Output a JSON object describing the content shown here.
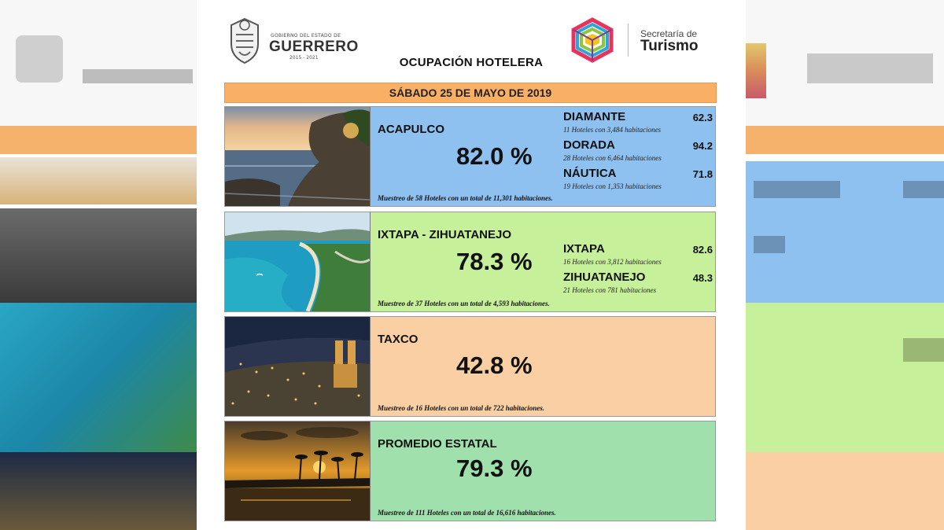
{
  "header": {
    "government": {
      "small_text": "GOBIERNO DEL ESTADO DE",
      "name": "GUERRERO",
      "years": "2015 - 2021"
    },
    "secretariat": {
      "small_text": "Secretaría de",
      "name": "Turismo"
    },
    "title": "OCUPACIÓN HOTELERA",
    "date": "SÁBADO 25 DE MAYO DE 2019"
  },
  "destinations": [
    {
      "name": "ACAPULCO",
      "percent": "82.0 %",
      "sample": "Muestreo de 58 Hoteles con un total de 11,301 habitaciones.",
      "color": "#8ec0f0",
      "zones": [
        {
          "name": "DIAMANTE",
          "value": "62.3",
          "detail": "11 Hoteles con 3,484 habitaciones"
        },
        {
          "name": "DORADA",
          "value": "94.2",
          "detail": "28 Hoteles con 6,464 habitaciones"
        },
        {
          "name": "NÁUTICA",
          "value": "71.8",
          "detail": "19 Hoteles con 1,353 habitaciones"
        }
      ]
    },
    {
      "name": "IXTAPA - ZIHUATANEJO",
      "percent": "78.3 %",
      "sample": "Muestreo de 37 Hoteles con un total de 4,593 habitaciones.",
      "color": "#c7f09a",
      "zones": [
        {
          "name": "IXTAPA",
          "value": "82.6",
          "detail": "16 Hoteles con 3,812 habitaciones"
        },
        {
          "name": "ZIHUATANEJO",
          "value": "48.3",
          "detail": "21 Hoteles con 781 habitaciones"
        }
      ]
    },
    {
      "name": "TAXCO",
      "percent": "42.8 %",
      "sample": "Muestreo de 16 Hoteles con un total de 722 habitaciones.",
      "color": "#f9cfa3",
      "zones": []
    },
    {
      "name": "PROMEDIO ESTATAL",
      "percent": "79.3 %",
      "sample": "Muestreo de 111 Hoteles con un total de 16,616 habitaciones.",
      "color": "#9fe0ad",
      "zones": []
    }
  ],
  "colors": {
    "date_bar": "#f9b065",
    "acapulco": "#8ec0f0",
    "ixtapa": "#c7f09a",
    "taxco": "#f9cfa3",
    "estatal": "#9fe0ad"
  }
}
